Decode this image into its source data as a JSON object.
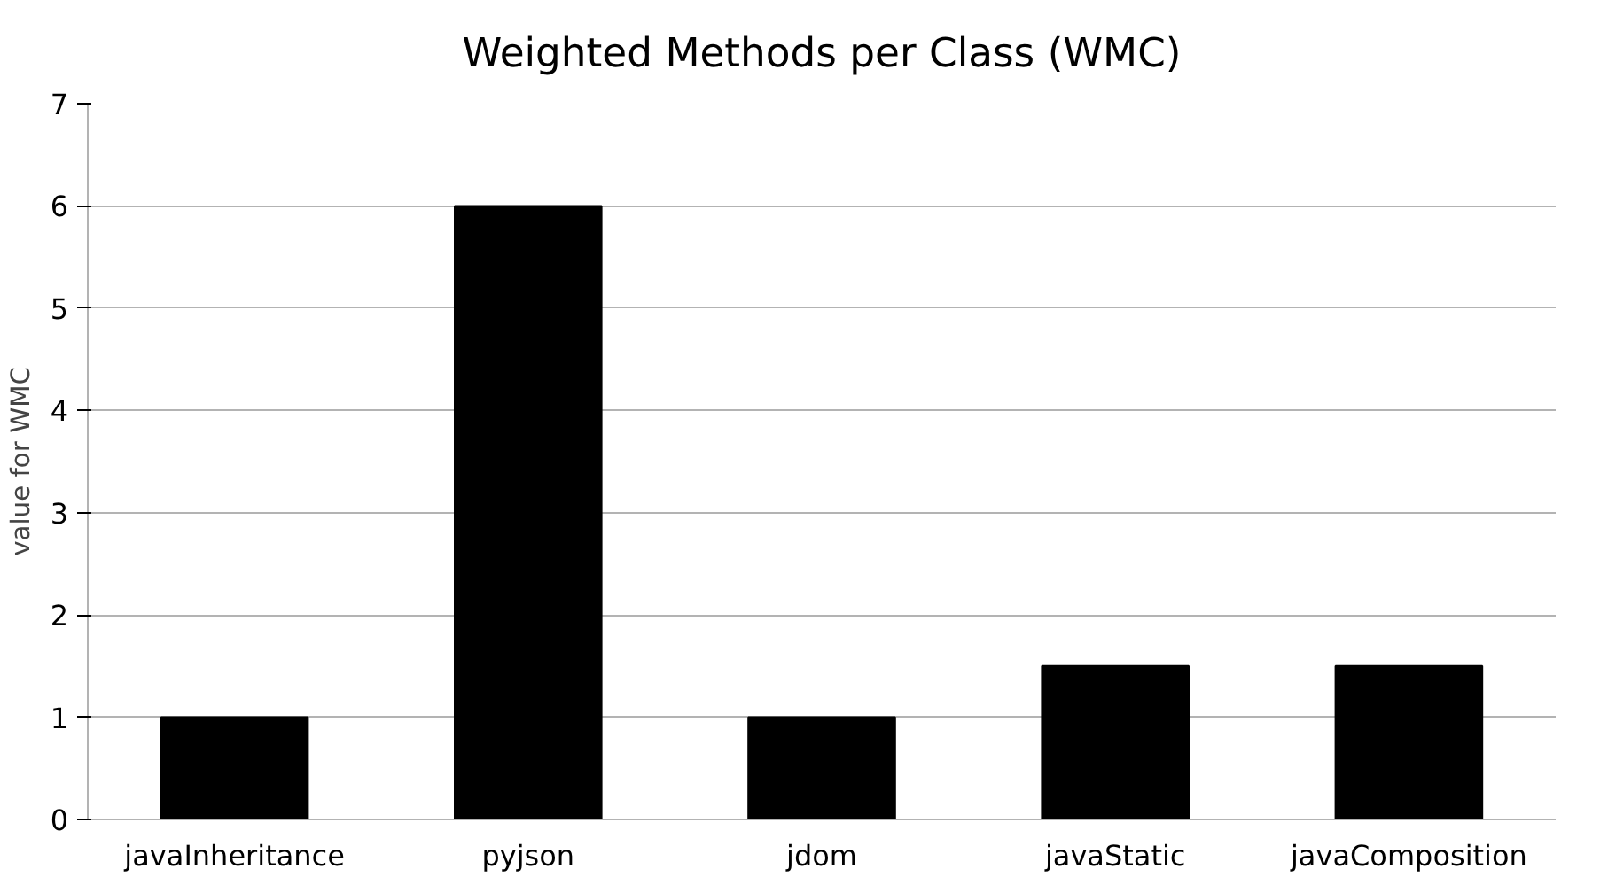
{
  "chart_data": {
    "type": "bar",
    "title": "Weighted Methods per Class (WMC)",
    "ylabel": "value for WMC",
    "categories": [
      "javaInheritance",
      "pyjson",
      "jdom",
      "javaStatic",
      "javaComposition"
    ],
    "values": [
      1,
      6,
      1,
      1.5,
      1.5
    ],
    "color": "#000000",
    "ylim": [
      0,
      7
    ],
    "yticks": [
      0,
      1,
      2,
      3,
      4,
      5,
      6,
      7
    ],
    "grid": "y"
  }
}
